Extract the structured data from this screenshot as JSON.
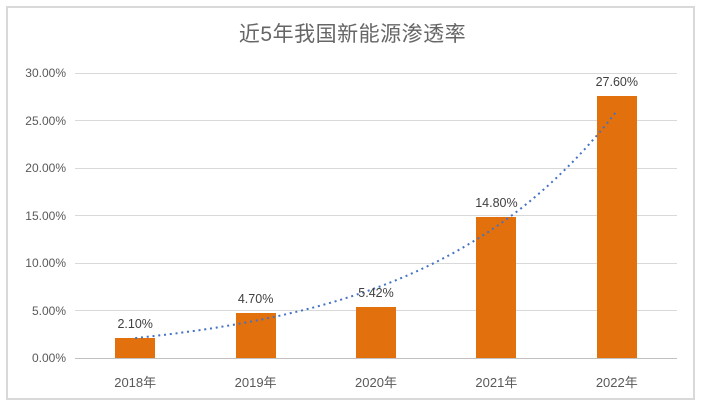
{
  "chart_data": {
    "type": "bar",
    "title": "近5年我国新能源渗透率",
    "categories": [
      "2018年",
      "2019年",
      "2020年",
      "2021年",
      "2022年"
    ],
    "values": [
      2.1,
      4.7,
      5.42,
      14.8,
      27.6
    ],
    "value_labels": [
      "2.10%",
      "4.70%",
      "5.42%",
      "14.80%",
      "27.60%"
    ],
    "xlabel": "",
    "ylabel": "",
    "ylim": [
      0,
      30
    ],
    "yticks": [
      0,
      5,
      10,
      15,
      20,
      25,
      30
    ],
    "ytick_labels": [
      "0.00%",
      "5.00%",
      "10.00%",
      "15.00%",
      "20.00%",
      "25.00%",
      "30.00%"
    ],
    "grid": true,
    "legend": "none",
    "trendline": {
      "type": "exponential",
      "style": "dotted",
      "color": "#4472C4"
    },
    "colors": {
      "bar": "#E2700C",
      "gridline": "#D9D9D9",
      "axis_line": "#C0C0C0",
      "axis_text": "#595959",
      "data_label": "#404040",
      "title_text": "#666666",
      "border": "#D9D9D9",
      "background": "#FFFFFF"
    }
  }
}
